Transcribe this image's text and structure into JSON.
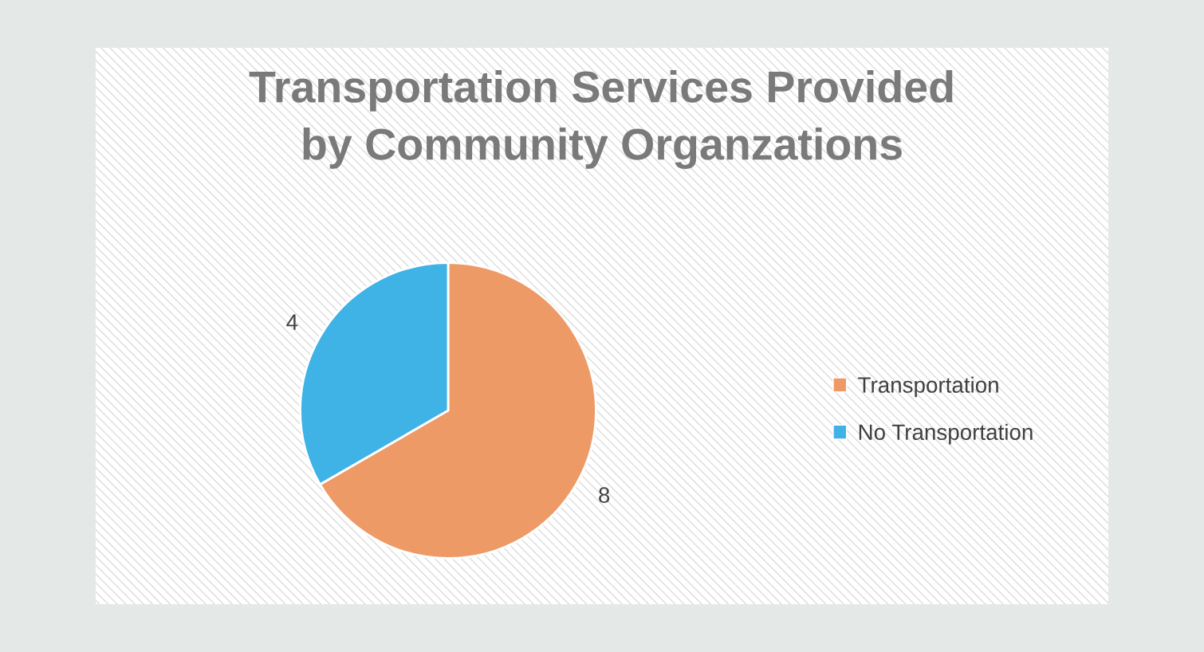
{
  "chart_data": {
    "type": "pie",
    "title": "Transportation Services Provided\nby Community Organzations",
    "categories": [
      "Transportation",
      "No Transportation"
    ],
    "values": [
      8,
      4
    ],
    "colors": [
      "#ee9a66",
      "#3fb2e6"
    ],
    "data_labels": true,
    "legend": "right"
  }
}
